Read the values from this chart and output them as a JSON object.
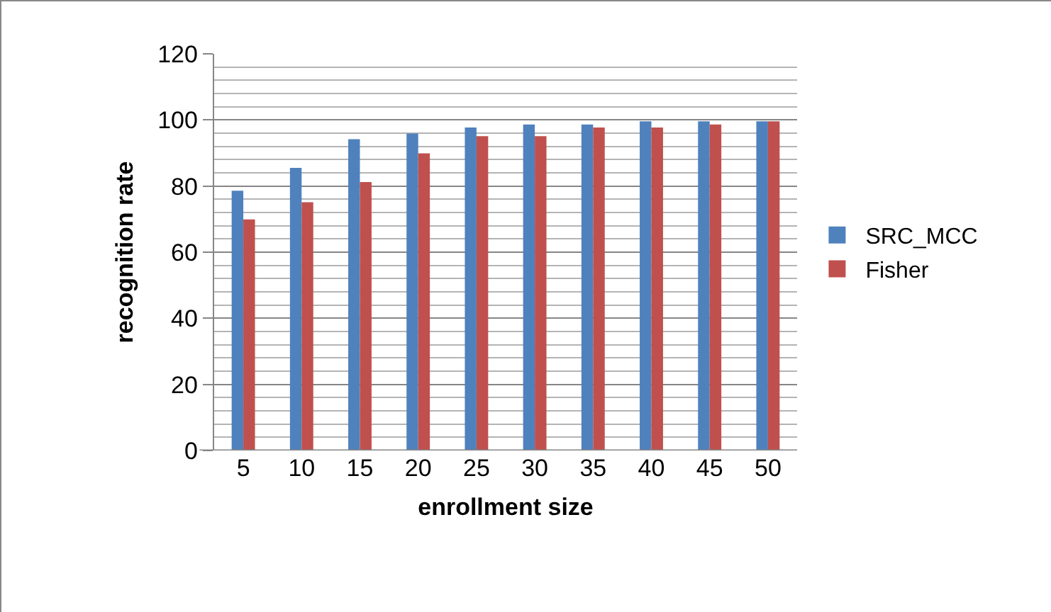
{
  "chart_data": {
    "type": "bar",
    "xlabel": "enrollment size",
    "ylabel": "recognition rate",
    "categories": [
      "5",
      "10",
      "15",
      "20",
      "25",
      "30",
      "35",
      "40",
      "45",
      "50"
    ],
    "series": [
      {
        "name": "SRC_MCC",
        "color": "#4f81bd",
        "values": [
          78.6,
          85.5,
          94.2,
          95.9,
          97.7,
          98.6,
          98.6,
          99.6,
          99.6,
          99.6
        ]
      },
      {
        "name": "Fisher",
        "color": "#c0504d",
        "values": [
          69.9,
          75.1,
          81.2,
          89.9,
          95.1,
          95.1,
          97.7,
          97.7,
          98.6,
          99.6
        ]
      }
    ],
    "ylim": [
      0,
      120
    ],
    "yticks": [
      0,
      {
        "value": 4,
        "label": null
      },
      {
        "value": 8,
        "label": null
      },
      {
        "value": 12,
        "label": null
      },
      {
        "value": 16,
        "label": null
      },
      20,
      {
        "value": 24,
        "label": null
      },
      {
        "value": 28,
        "label": null
      },
      {
        "value": 32,
        "label": null
      },
      {
        "value": 36,
        "label": null
      },
      40,
      {
        "value": 44,
        "label": null
      },
      {
        "value": 48,
        "label": null
      },
      {
        "value": 52,
        "label": null
      },
      {
        "value": 56,
        "label": null
      },
      60,
      {
        "value": 64,
        "label": null
      },
      {
        "value": 68,
        "label": null
      },
      {
        "value": 72,
        "label": null
      },
      {
        "value": 76,
        "label": null
      },
      80,
      {
        "value": 84,
        "label": null
      },
      {
        "value": 88,
        "label": null
      },
      {
        "value": 92,
        "label": null
      },
      {
        "value": 96,
        "label": null
      },
      100,
      {
        "value": 104,
        "label": null
      },
      {
        "value": 108,
        "label": null
      },
      {
        "value": 112,
        "label": null
      },
      {
        "value": 116,
        "label": null
      },
      120
    ],
    "grid": "y",
    "legend": "right"
  }
}
